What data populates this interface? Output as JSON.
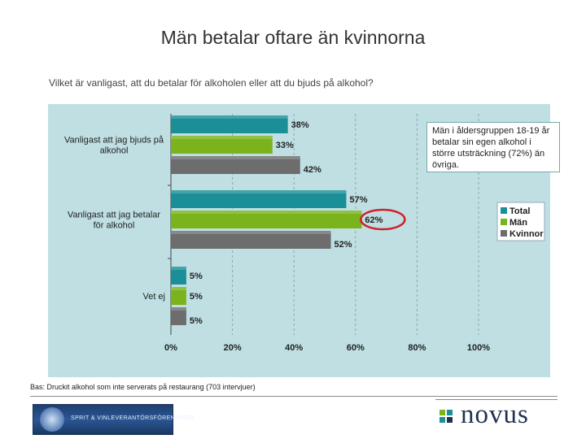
{
  "page": {
    "title": "Män betalar oftare än kvinnorna",
    "subtitle": "Vilket är vanligast, att du betalar för alkoholen eller att du bjuds på alkohol?",
    "callout": "Män i åldersgruppen 18-19 år betalar sin egen alkohol i större utsträckning (72%) än övriga.",
    "footnote": "Bas: Druckit alkohol som inte serverats på restaurang (703 intervjuer)",
    "logo_left_text": "SPRIT & VINLEVERANTÖRSFÖRENINGEN",
    "logo_right_text": "novus"
  },
  "chart_data": {
    "type": "bar",
    "orientation": "horizontal",
    "categories": [
      "Vanligast att jag bjuds på alkohol",
      "Vanligast att jag betalar för alkohol",
      "Vet ej"
    ],
    "series": [
      {
        "name": "Total",
        "values": [
          38,
          57,
          5
        ],
        "labels": [
          "38%",
          "57%",
          "5%"
        ],
        "color": "#1a8f98"
      },
      {
        "name": "Män",
        "values": [
          33,
          62,
          5
        ],
        "labels": [
          "33%",
          "62%",
          "5%"
        ],
        "color": "#7bb31c"
      },
      {
        "name": "Kvinnor",
        "values": [
          42,
          52,
          5
        ],
        "labels": [
          "42%",
          "52%",
          "5%"
        ],
        "color": "#6d6d6d"
      }
    ],
    "xlim": [
      0,
      100
    ],
    "xticks": [
      "0%",
      "20%",
      "40%",
      "60%",
      "80%",
      "100%"
    ],
    "xtick_values": [
      0,
      20,
      40,
      60,
      80,
      100
    ],
    "gridlines": "vertical dashed",
    "legend": "right",
    "highlight": {
      "category_index": 1,
      "series_index": 1,
      "color": "#d0202c"
    }
  }
}
